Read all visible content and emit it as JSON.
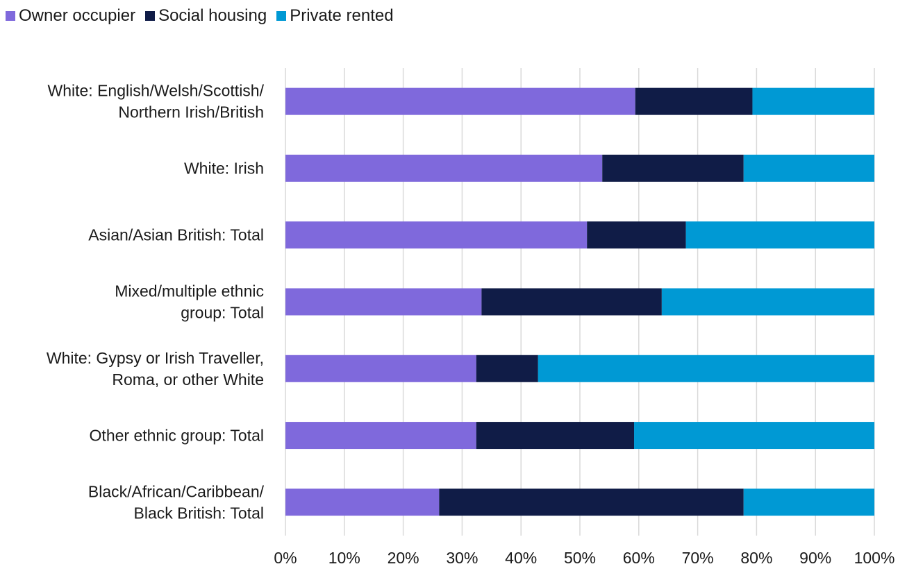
{
  "chart_data": {
    "type": "bar",
    "orientation": "horizontal",
    "stacked": true,
    "categories": [
      [
        "White: English/Welsh/Scottish/",
        "Northern Irish/British"
      ],
      [
        "White: Irish"
      ],
      [
        "Asian/Asian British: Total"
      ],
      [
        "Mixed/multiple ethnic",
        "group: Total"
      ],
      [
        "White: Gypsy or Irish Traveller,",
        "Roma, or other White"
      ],
      [
        "Other ethnic group: Total"
      ],
      [
        "Black/African/Caribbean/",
        "Black British: Total"
      ]
    ],
    "series": [
      {
        "name": "Owner occupier",
        "color": "#7f69dc",
        "values": [
          59.4,
          53.8,
          51.2,
          33.3,
          32.4,
          32.4,
          26.1
        ]
      },
      {
        "name": "Social housing",
        "color": "#101c47",
        "values": [
          19.9,
          24.0,
          16.8,
          30.6,
          10.5,
          26.8,
          51.7
        ]
      },
      {
        "name": "Private rented",
        "color": "#0099d4",
        "values": [
          20.7,
          22.2,
          32.0,
          36.1,
          57.1,
          40.8,
          22.2
        ]
      }
    ],
    "xlim": [
      0,
      100
    ],
    "xticks": [
      "0%",
      "10%",
      "20%",
      "30%",
      "40%",
      "50%",
      "60%",
      "70%",
      "80%",
      "90%",
      "100%"
    ],
    "title": "",
    "xlabel": "",
    "ylabel": "",
    "grid": "vertical",
    "legend": "top-left"
  }
}
